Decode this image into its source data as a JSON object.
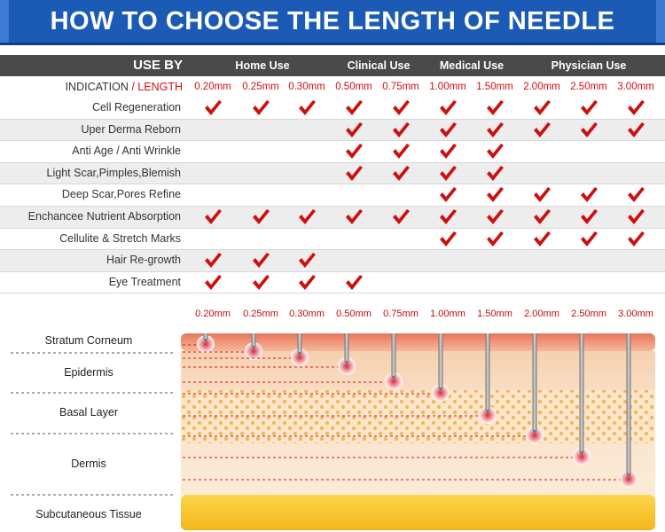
{
  "title": "HOW TO CHOOSE THE LENGTH OF NEEDLE",
  "table": {
    "use_by": "USE BY",
    "groups": [
      "Home Use",
      "Clinical Use",
      "Medical Use",
      "Physician Use"
    ],
    "indication_label": "INDICATION",
    "slash": " / ",
    "length_label": "LENGTH",
    "lengths": [
      "0.20mm",
      "0.25mm",
      "0.30mm",
      "0.50mm",
      "0.75mm",
      "1.00mm",
      "1.50mm",
      "2.00mm",
      "2.50mm",
      "3.00mm"
    ],
    "rows": [
      {
        "label": "Cell Regeneration",
        "checks": [
          1,
          1,
          1,
          1,
          1,
          1,
          1,
          1,
          1,
          1
        ]
      },
      {
        "label": "Uper Derma Reborn",
        "checks": [
          0,
          0,
          0,
          1,
          1,
          1,
          1,
          1,
          1,
          1
        ]
      },
      {
        "label": "Anti Age / Anti Wrinkle",
        "checks": [
          0,
          0,
          0,
          1,
          1,
          1,
          1,
          0,
          0,
          0
        ]
      },
      {
        "label": "Light Scar,Pimples,Blemish",
        "checks": [
          0,
          0,
          0,
          1,
          1,
          1,
          1,
          0,
          0,
          0
        ]
      },
      {
        "label": "Deep Scar,Pores Refine",
        "checks": [
          0,
          0,
          0,
          0,
          0,
          1,
          1,
          1,
          1,
          1
        ]
      },
      {
        "label": "Enchancee Nutrient Absorption",
        "checks": [
          1,
          1,
          1,
          1,
          1,
          1,
          1,
          1,
          1,
          1
        ]
      },
      {
        "label": "Cellulite & Stretch Marks",
        "checks": [
          0,
          0,
          0,
          0,
          0,
          1,
          1,
          1,
          1,
          1
        ]
      },
      {
        "label": "Hair Re-growth",
        "checks": [
          1,
          1,
          1,
          0,
          0,
          0,
          0,
          0,
          0,
          0
        ]
      },
      {
        "label": "Eye Treatment",
        "checks": [
          1,
          1,
          1,
          1,
          0,
          0,
          0,
          0,
          0,
          0
        ]
      }
    ]
  },
  "diagram": {
    "lengths": [
      "0.20mm",
      "0.25mm",
      "0.30mm",
      "0.50mm",
      "0.75mm",
      "1.00mm",
      "1.50mm",
      "2.00mm",
      "2.50mm",
      "3.00mm"
    ],
    "layers": [
      "Stratum Corneum",
      "Epidermis",
      "Basal Layer",
      "Dermis",
      "Subcutaneous Tissue"
    ]
  },
  "colors": {
    "banner": "#1b5bb5",
    "header": "#4a4a4a",
    "check": "#cc1010",
    "length_text": "#d10f0f"
  }
}
